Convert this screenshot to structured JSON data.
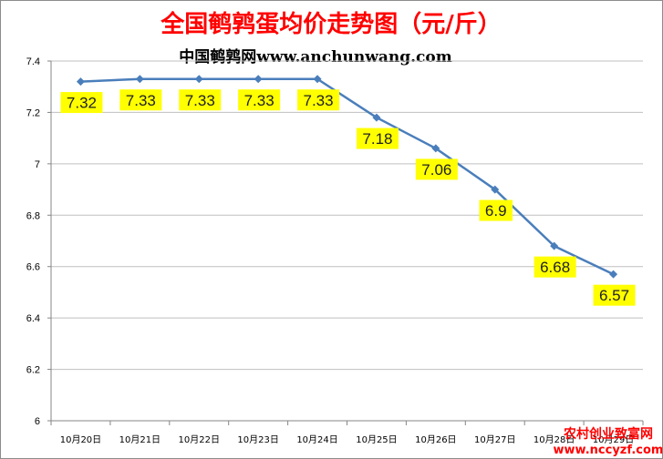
{
  "chart_data": {
    "type": "line",
    "title": "全国鹌鹑蛋均价走势图（元/斤）",
    "subtitle": "中国鹌鹑网www.anchunwang.com",
    "categories": [
      "10月20日",
      "10月21日",
      "10月22日",
      "10月23日",
      "10月24日",
      "10月25日",
      "10月26日",
      "10月27日",
      "10月28日",
      "10月29日"
    ],
    "values": [
      7.32,
      7.33,
      7.33,
      7.33,
      7.33,
      7.18,
      7.06,
      6.9,
      6.68,
      6.57
    ],
    "data_labels": [
      "7.32",
      "7.33",
      "7.33",
      "7.33",
      "7.33",
      "7.18",
      "7.06",
      "6.9",
      "6.68",
      "6.57"
    ],
    "y_ticks": [
      "6",
      "6.2",
      "6.4",
      "6.6",
      "6.8",
      "7",
      "7.2",
      "7.4"
    ],
    "ylim": [
      6,
      7.4
    ],
    "grid": true,
    "legend": "none",
    "colors": {
      "line": "#4a7ebb",
      "title": "#ff0000",
      "label_bg": "#ffff00",
      "grid": "#bfbfbf"
    }
  },
  "watermark": {
    "line1": "农村创业致富网",
    "line2": "www.nccyzf.com",
    "color": "#ff0000"
  }
}
